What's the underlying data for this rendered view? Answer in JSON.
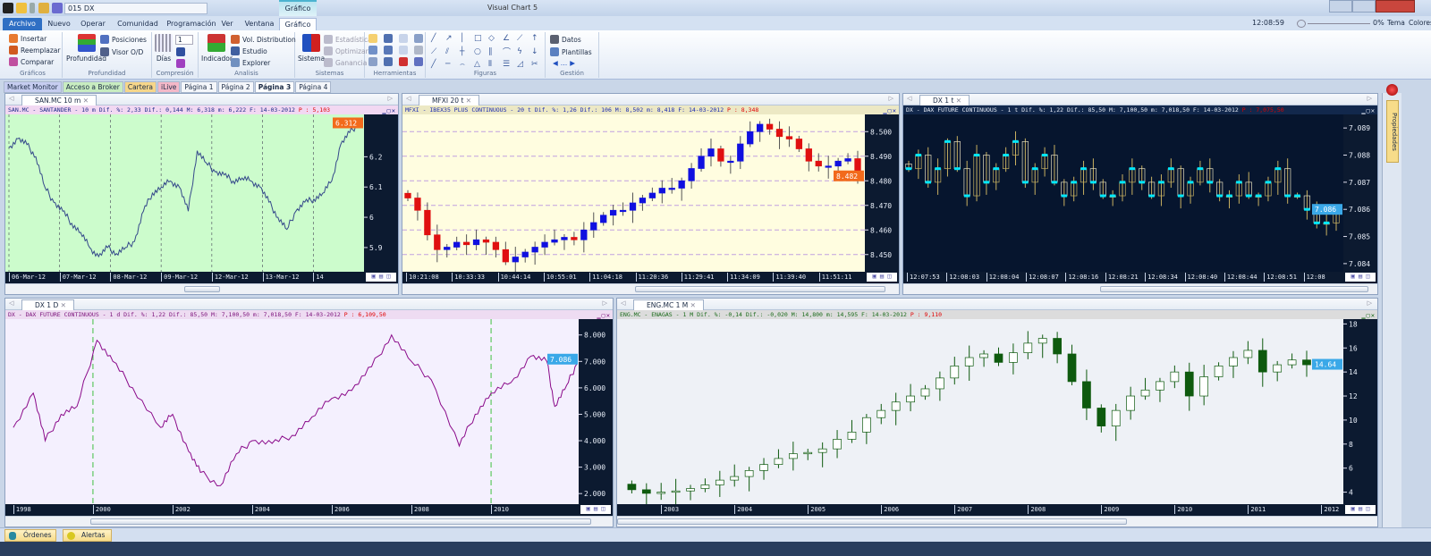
{
  "titlebar": {
    "symbol_combo": "015 DX",
    "app_title": "Visual Chart 5",
    "context_tab": "Gráfico"
  },
  "tabs": [
    {
      "label": "Archivo"
    },
    {
      "label": "Nuevo"
    },
    {
      "label": "Operar"
    },
    {
      "label": "Comunidad"
    },
    {
      "label": "Programación"
    },
    {
      "label": "Ver"
    },
    {
      "label": "Ventana"
    },
    {
      "label": "Gráfico"
    }
  ],
  "right_tools": {
    "clock": "12:08:59",
    "zoom": "0%",
    "theme": "Tema",
    "colors": "Colores"
  },
  "ribbon": {
    "graficos": {
      "label": "Gráficos",
      "insert": "Insertar",
      "replace": "Reemplazar",
      "compare": "Comparar"
    },
    "profundidad": {
      "label": "Profundidad",
      "big": "Profundidad",
      "positions": "Posiciones",
      "viewer": "Visor O/D"
    },
    "compresion": {
      "label": "Compresión",
      "days": "Días",
      "value": "1"
    },
    "analisis": {
      "label": "Analisis",
      "indicator": "Indicador",
      "vol": "Vol. Distribution",
      "study": "Estudio",
      "explorer": "Explorer"
    },
    "sistemas": {
      "label": "Sistemas",
      "system": "Sistema",
      "stats": "Estadística",
      "optimize": "Optimizar",
      "gain": "Ganancia"
    },
    "herramientas": {
      "label": "Herramientas"
    },
    "figuras": {
      "label": "Figuras"
    },
    "gestion": {
      "label": "Gestión",
      "data": "Datos",
      "templates": "Plantillas"
    }
  },
  "page_tabs": [
    {
      "label": "Market Monitor",
      "color": "#c6cdf0"
    },
    {
      "label": "Acceso a Broker",
      "color": "#c8ecc0"
    },
    {
      "label": "Cartera",
      "color": "#f6d68a"
    },
    {
      "label": "iLive",
      "color": "#f4b8c8"
    },
    {
      "label": "Página 1",
      "color": "#f4f6fa"
    },
    {
      "label": "Página 2",
      "color": "#f4f6fa"
    },
    {
      "label": "Página 3",
      "color": "#ffffff"
    },
    {
      "label": "Página 4",
      "color": "#f4f6fa"
    }
  ],
  "sidebar": {
    "label": "Propiedades"
  },
  "status": {
    "orders": "Órdenes",
    "alerts": "Alertas"
  },
  "panes": [
    {
      "tab": "SAN.MC 10 m",
      "header": "SAN.MC - SANTANDER -  10 m Dif. %: 2,33 Dif.: 0,144 M: 6,318 m: 6,222 F: 14-03-2012",
      "price": "P : 5,103"
    },
    {
      "tab": "MFXI 20 t",
      "header": "MFXI - IBEX35 PLUS CONTINUOUS -  20 t Dif. %: 1,26 Dif.: 106 M: 8,502 m: 8,418 F: 14-03-2012",
      "price": "P : 8,348"
    },
    {
      "tab": "DX 1 t",
      "header": "DX - DAX FUTURE CONTINUOUS -  1 t Dif. %: 1,22 Dif.: 85,50 M: 7,100,50 m: 7,018,50 F: 14-03-2012",
      "price": "P : 7,075,50"
    },
    {
      "tab": "DX 1 D",
      "header": "DX - DAX FUTURE CONTINUOUS -  1 d Dif. %: 1,22 Dif.: 85,50 M: 7,100,50 m: 7,018,50 F: 14-03-2012",
      "price": "P : 6,109,50"
    },
    {
      "tab": "ENG.MC 1 M",
      "header": "ENG.MC - ENAGAS -  1 M Dif. %: -0,14 Dif.: -0,020 M: 14,800 m: 14,595 F: 14-03-2012",
      "price": "P : 9,110"
    }
  ],
  "chart_data": [
    {
      "type": "line",
      "bg": "#ccfccc",
      "color": "#34488a",
      "grid": "vertical-dashed",
      "ylim": [
        5.82,
        6.34
      ],
      "yticks": [
        "6.2",
        "6.1",
        "6",
        "5.9"
      ],
      "ytick_values": [
        6.2,
        6.1,
        6.0,
        5.9
      ],
      "last": "6.312",
      "last_color": "#f26a1b",
      "xticks": [
        "06-Mar-12",
        "07-Mar-12",
        "08-Mar-12",
        "09-Mar-12",
        "12-Mar-12",
        "13-Mar-12",
        "14"
      ],
      "values": [
        6.23,
        6.26,
        6.24,
        6.2,
        6.1,
        6.05,
        6.02,
        5.98,
        5.95,
        5.9,
        5.87,
        5.9,
        5.88,
        5.9,
        5.92,
        6.02,
        6.08,
        6.1,
        6.12,
        6.1,
        6.02,
        6.22,
        6.18,
        6.15,
        6.14,
        6.12,
        6.13,
        6.12,
        6.1,
        6.05,
        6.0,
        5.96,
        6.02,
        6.05,
        6.06,
        6.08,
        6.12,
        6.24,
        6.28,
        6.31
      ]
    },
    {
      "type": "candlestick",
      "bg": "#fffde0",
      "up": "#1010e0",
      "down": "#e01010",
      "grid": "horizontal-dashed",
      "ylim": [
        8.443,
        8.507
      ],
      "yticks": [
        "8.500",
        "8.490",
        "8.480",
        "8.470",
        "8.460",
        "8.450"
      ],
      "ytick_values": [
        8.5,
        8.49,
        8.48,
        8.47,
        8.46,
        8.45
      ],
      "last": "8.482",
      "last_color": "#f26a1b",
      "xticks": [
        "10:21:08",
        "10:33:33",
        "10:44:14",
        "10:55:01",
        "11:04:18",
        "11:20:36",
        "11:29:41",
        "11:34:09",
        "11:39:40",
        "11:51:11"
      ],
      "closes": [
        8.473,
        8.468,
        8.458,
        8.452,
        8.453,
        8.455,
        8.454,
        8.456,
        8.455,
        8.452,
        8.447,
        8.449,
        8.451,
        8.453,
        8.455,
        8.456,
        8.457,
        8.456,
        8.46,
        8.463,
        8.466,
        8.468,
        8.468,
        8.471,
        8.473,
        8.475,
        8.477,
        8.477,
        8.48,
        8.485,
        8.49,
        8.493,
        8.488,
        8.488,
        8.495,
        8.5,
        8.503,
        8.501,
        8.498,
        8.497,
        8.493,
        8.488,
        8.486,
        8.486,
        8.488,
        8.489,
        8.483
      ]
    },
    {
      "type": "candlestick",
      "bg": "#06152e",
      "up": "#c8b060",
      "down": "#e8e0c0",
      "mark": "#00e8ff",
      "grid": "none",
      "ylim": [
        7.0837,
        7.0895
      ],
      "yticks": [
        "7.089",
        "7.088",
        "7.087",
        "7.086",
        "7.085",
        "7.084"
      ],
      "ytick_values": [
        7.089,
        7.088,
        7.087,
        7.086,
        7.085,
        7.084
      ],
      "last": "7.086",
      "last_color": "#3aa8e8",
      "xticks": [
        "12:07:53",
        "12:08:03",
        "12:08:04",
        "12:08:07",
        "12:08:16",
        "12:08:21",
        "12:08:34",
        "12:08:40",
        "12:08:44",
        "12:08:51",
        "12:08"
      ],
      "closes": [
        7.0875,
        7.088,
        7.087,
        7.0875,
        7.0885,
        7.0875,
        7.0865,
        7.088,
        7.087,
        7.0875,
        7.088,
        7.0885,
        7.087,
        7.0875,
        7.088,
        7.087,
        7.0865,
        7.087,
        7.0875,
        7.087,
        7.0865,
        7.0865,
        7.087,
        7.0875,
        7.087,
        7.0865,
        7.087,
        7.0875,
        7.0865,
        7.087,
        7.0875,
        7.087,
        7.0865,
        7.0865,
        7.087,
        7.0865,
        7.0865,
        7.087,
        7.0875,
        7.0865,
        7.0865,
        7.086,
        7.0855,
        7.0855,
        7.086
      ]
    },
    {
      "type": "line",
      "bg": "#f4f0fe",
      "color": "#8a0a8a",
      "grid": "none",
      "ylim": [
        1.6,
        8.6
      ],
      "xlim": [
        1997.8,
        2012.2
      ],
      "markers": [
        2000,
        2010
      ],
      "marker_color": "#40c040",
      "yticks": [
        "8.000",
        "7.000",
        "6.000",
        "5.000",
        "4.000",
        "3.000",
        "2.000"
      ],
      "ytick_values": [
        8,
        7,
        6,
        5,
        4,
        3,
        2
      ],
      "last": "7.086",
      "last_color": "#3aa8e8",
      "xticks": [
        "1998",
        "2000",
        "2002",
        "2004",
        "2006",
        "2008",
        "2010"
      ],
      "xtick_values": [
        1998,
        2000,
        2002,
        2004,
        2006,
        2008,
        2010
      ],
      "x": [
        1998,
        1998.5,
        1998.8,
        1999.2,
        1999.6,
        2000.1,
        2000.5,
        2001,
        2001.7,
        2002,
        2002.4,
        2002.7,
        2003.2,
        2003.6,
        2004,
        2004.5,
        2005,
        2005.5,
        2006,
        2006.5,
        2007,
        2007.5,
        2008,
        2008.5,
        2009.2,
        2009.6,
        2010,
        2010.5,
        2011,
        2011.4,
        2011.6,
        2011.9,
        2012.15
      ],
      "y": [
        4.5,
        5.8,
        4.0,
        5.0,
        5.3,
        7.8,
        7.0,
        6.0,
        4.5,
        5.0,
        3.6,
        2.8,
        2.3,
        3.5,
        4.0,
        3.9,
        4.2,
        4.9,
        5.6,
        5.9,
        6.8,
        8.0,
        7.0,
        6.3,
        3.8,
        5.0,
        5.8,
        6.2,
        7.2,
        7.0,
        5.3,
        6.1,
        6.9
      ]
    },
    {
      "type": "candlestick",
      "bg": "#eef1f6",
      "up": "#ffffff",
      "down": "#0e5a0e",
      "stroke": "#0e5a0e",
      "grid": "none",
      "ylim": [
        3,
        18.4
      ],
      "xlim": [
        2002.4,
        2012.3
      ],
      "yticks": [
        "18",
        "16",
        "14",
        "12",
        "10",
        "8",
        "6",
        "4"
      ],
      "ytick_values": [
        18,
        16,
        14,
        12,
        10,
        8,
        6,
        4
      ],
      "last": "14.64",
      "last_color": "#3aa8e8",
      "xticks": [
        "2003",
        "2004",
        "2005",
        "2006",
        "2007",
        "2008",
        "2009",
        "2010",
        "2011",
        "2012"
      ],
      "xtick_values": [
        2003,
        2004,
        2005,
        2006,
        2007,
        2008,
        2009,
        2010,
        2011,
        2012
      ],
      "start": 2002.6,
      "step": 0.2,
      "closes": [
        4.2,
        3.9,
        4.0,
        4.1,
        4.3,
        4.6,
        5.0,
        5.3,
        5.8,
        6.3,
        6.8,
        7.2,
        7.3,
        7.6,
        8.4,
        9.0,
        10.2,
        10.8,
        11.5,
        12.0,
        12.6,
        13.5,
        14.5,
        15.2,
        15.5,
        14.8,
        15.6,
        16.4,
        16.8,
        15.5,
        13.2,
        11.0,
        9.5,
        10.8,
        12.0,
        12.5,
        13.2,
        14.0,
        12.0,
        13.6,
        14.5,
        15.2,
        15.8,
        14.0,
        14.6,
        15.0,
        14.6
      ]
    }
  ]
}
